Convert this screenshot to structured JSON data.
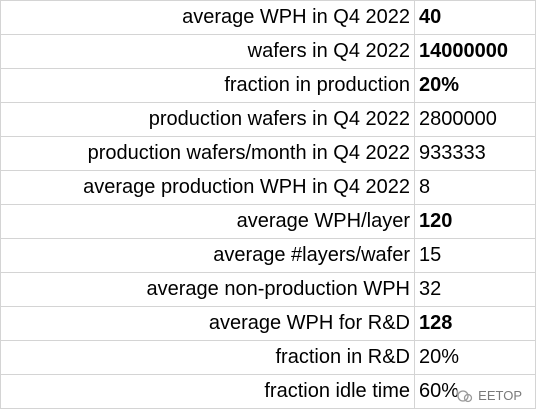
{
  "table": {
    "rows": [
      {
        "label": "average WPH in Q4 2022",
        "value": "40",
        "bold": true
      },
      {
        "label": "wafers in Q4 2022",
        "value": "14000000",
        "bold": true
      },
      {
        "label": "fraction in production",
        "value": "20%",
        "bold": true
      },
      {
        "label": "production wafers in Q4 2022",
        "value": "2800000",
        "bold": false
      },
      {
        "label": "production wafers/month in Q4 2022",
        "value": "933333",
        "bold": false
      },
      {
        "label": "average production WPH in Q4 2022",
        "value": "8",
        "bold": false
      },
      {
        "label": "average WPH/layer",
        "value": "120",
        "bold": true
      },
      {
        "label": "average #layers/wafer",
        "value": "15",
        "bold": false
      },
      {
        "label": "average non-production WPH",
        "value": "32",
        "bold": false
      },
      {
        "label": "average WPH for R&D",
        "value": "128",
        "bold": true
      },
      {
        "label": "fraction in R&D",
        "value": "20%",
        "bold": false
      },
      {
        "label": "fraction idle time",
        "value": "60%",
        "bold": false
      }
    ]
  },
  "watermark": "EETOP"
}
